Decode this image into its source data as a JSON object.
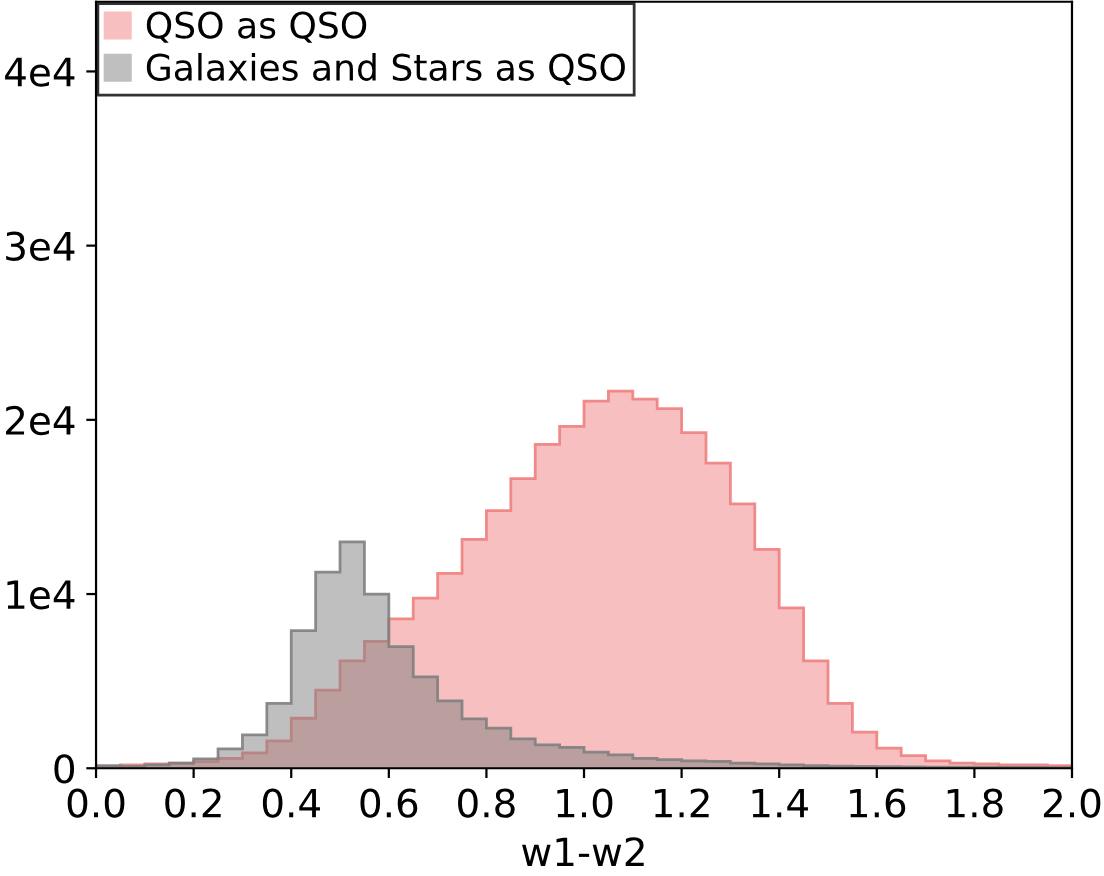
{
  "chart_data": {
    "type": "histogram",
    "xlabel": "w1-w2",
    "bins": [
      0.0,
      0.05,
      0.1,
      0.15,
      0.2,
      0.25,
      0.3,
      0.35,
      0.4,
      0.45,
      0.5,
      0.55,
      0.6,
      0.65,
      0.7,
      0.75,
      0.8,
      0.85,
      0.9,
      0.95,
      1.0,
      1.05,
      1.1,
      1.15,
      1.2,
      1.25,
      1.3,
      1.35,
      1.4,
      1.45,
      1.5,
      1.55,
      1.6,
      1.65,
      1.7,
      1.75,
      1.8,
      1.85,
      1.9,
      1.95,
      2.0
    ],
    "series": [
      {
        "name": "QSO as QSO",
        "color": "#f08080",
        "values": [
          100,
          200,
          250,
          300,
          380,
          570,
          880,
          1570,
          2870,
          4480,
          6170,
          7280,
          8580,
          9770,
          11190,
          13140,
          14790,
          16630,
          18590,
          19620,
          21070,
          21650,
          21190,
          20650,
          19270,
          17510,
          15170,
          12570,
          9200,
          6170,
          3720,
          2070,
          1150,
          730,
          420,
          300,
          250,
          200,
          200,
          150
        ]
      },
      {
        "name": "Galaxies and Stars as QSO",
        "color": "#808080",
        "values": [
          150,
          100,
          200,
          300,
          540,
          1110,
          1920,
          3720,
          7900,
          11260,
          12990,
          10000,
          6980,
          5250,
          3870,
          2840,
          2300,
          1690,
          1340,
          1200,
          920,
          770,
          570,
          500,
          420,
          400,
          300,
          250,
          200,
          150,
          120,
          100,
          90,
          80,
          70,
          60,
          60,
          50,
          50,
          40
        ]
      }
    ],
    "xlim": [
      0.0,
      2.0
    ],
    "xticks": [
      {
        "value": 0.0,
        "label": "0.0"
      },
      {
        "value": 0.2,
        "label": "0.2"
      },
      {
        "value": 0.4,
        "label": "0.4"
      },
      {
        "value": 0.6,
        "label": "0.6"
      },
      {
        "value": 0.8,
        "label": "0.8"
      },
      {
        "value": 1.0,
        "label": "1.0"
      },
      {
        "value": 1.2,
        "label": "1.2"
      },
      {
        "value": 1.4,
        "label": "1.4"
      },
      {
        "value": 1.6,
        "label": "1.6"
      },
      {
        "value": 1.8,
        "label": "1.8"
      },
      {
        "value": 2.0,
        "label": "2.0"
      }
    ],
    "ylim": [
      0,
      44000
    ],
    "yticks": [
      0,
      {
        "value": 10000,
        "label": "1e4"
      },
      {
        "value": 20000,
        "label": "2e4"
      },
      {
        "value": 30000,
        "label": "3e4"
      },
      {
        "value": 40000,
        "label": "4e4"
      }
    ],
    "legend": "top left",
    "grid": false
  }
}
